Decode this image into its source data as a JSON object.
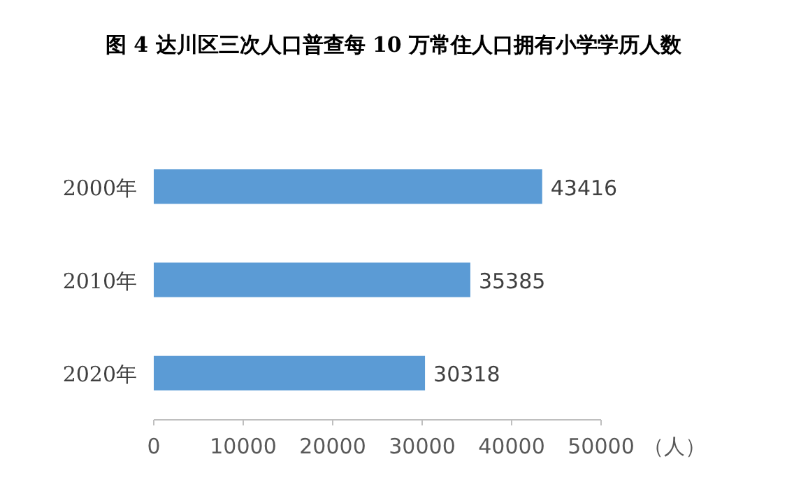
{
  "chart_data": {
    "type": "bar",
    "orientation": "horizontal",
    "title": "图 4  达川区三次人口普查每 10 万常住人口拥有小学学历人数",
    "xlabel": "（人）",
    "categories": [
      "2000年",
      "2010年",
      "2020年"
    ],
    "values": [
      43416,
      35385,
      30318
    ],
    "color": "#5b9bd5",
    "xlim": [
      0,
      50000
    ],
    "xticks": [
      0,
      10000,
      20000,
      30000,
      40000,
      50000
    ],
    "data_labels": true
  }
}
